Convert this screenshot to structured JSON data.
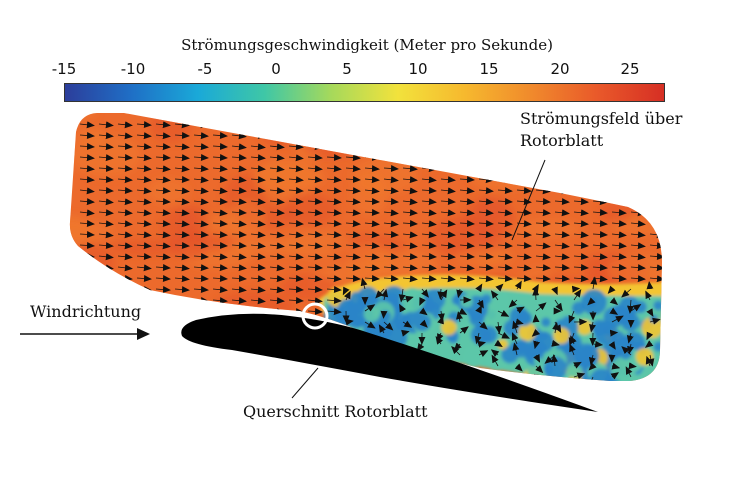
{
  "colorbar": {
    "title": "Strömungsgeschwindigkeit (Meter pro Sekunde)",
    "ticks": [
      "-15",
      "-10",
      "-5",
      "0",
      "5",
      "10",
      "15",
      "20",
      "25"
    ],
    "range": [
      -17,
      27
    ],
    "gradient_colors": [
      "#2c3e9b",
      "#1f6fc6",
      "#1aa9d8",
      "#3fc7a6",
      "#a6d95b",
      "#f2e23c",
      "#f6b92e",
      "#f08a2c",
      "#e9592a",
      "#d62f24"
    ]
  },
  "labels": {
    "flow_field": [
      "Strömungsfeld über",
      "Rotorblatt"
    ],
    "wind_direction": "Windrichtung",
    "cross_section": "Querschnitt Rotorblatt"
  },
  "colors": {
    "flow_fast": "#ec6a2c",
    "flow_fast_dark": "#e4542a",
    "flow_transition": "#f3c531",
    "flow_slow": "#2a84c8",
    "flow_mid": "#5cc6a8",
    "airfoil": "#000000",
    "marker": "#ffffff",
    "text": "#111111"
  }
}
